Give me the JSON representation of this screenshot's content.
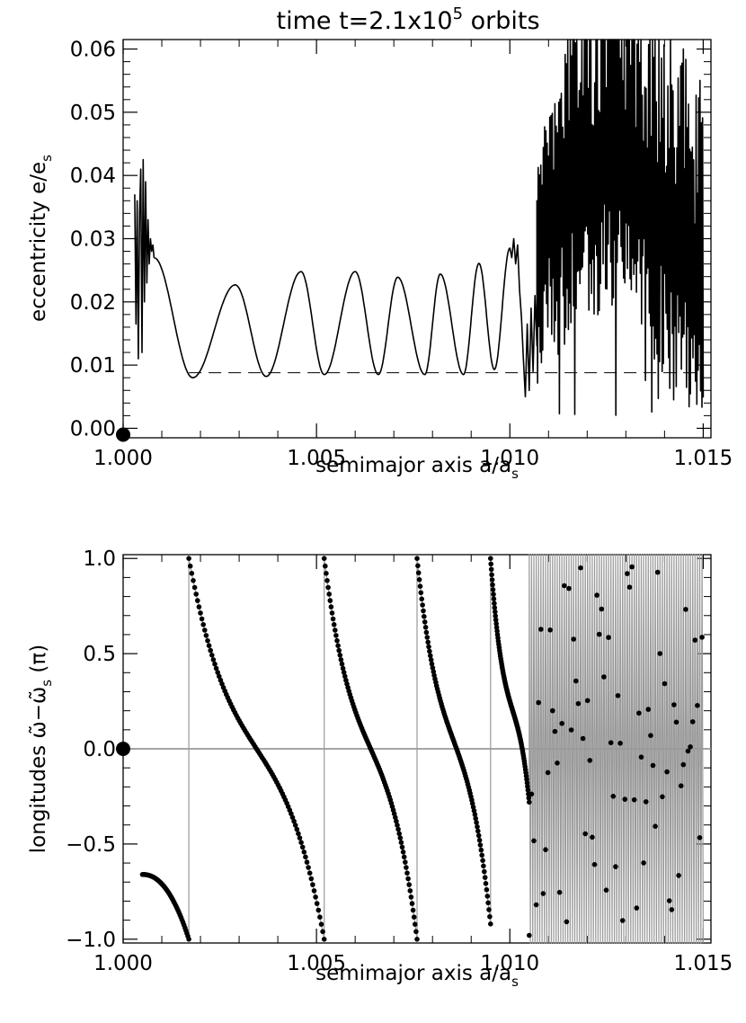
{
  "chart_data": [
    {
      "type": "line",
      "title": "time t=2.1x10",
      "title_exponent": "5",
      "title_suffix": " orbits",
      "xlabel": "semimajor axis a/a",
      "xlabel_sub": "s",
      "ylabel": "eccentricity e/e",
      "ylabel_sub": "s",
      "xlim": [
        1.0,
        1.0152
      ],
      "ylim": [
        -0.0015,
        0.0615
      ],
      "xticks": [
        "1.000",
        "1.005",
        "1.010",
        "1.015"
      ],
      "yticks": [
        "0.00",
        "0.01",
        "0.02",
        "0.03",
        "0.04",
        "0.05",
        "0.06"
      ],
      "grid": false,
      "reference_line": {
        "style": "dashed",
        "y": 0.0088,
        "x_start": 1.0017,
        "x_end": 1.015
      },
      "marker": {
        "x": 1.0,
        "y": -0.001
      },
      "segments": {
        "initial_spike": {
          "x_range": [
            1.0003,
            1.0008
          ],
          "y_min": 0.011,
          "y_max": 0.0425
        },
        "oscillation_minima_x": [
          1.0018,
          1.0037,
          1.0052,
          1.0066,
          1.0078,
          1.0088,
          1.0096
        ],
        "oscillation_peaks": [
          {
            "x": 1.0008,
            "y": 0.027
          },
          {
            "x": 1.0029,
            "y": 0.0227
          },
          {
            "x": 1.0046,
            "y": 0.0248
          },
          {
            "x": 1.006,
            "y": 0.0248
          },
          {
            "x": 1.0071,
            "y": 0.0239
          },
          {
            "x": 1.0082,
            "y": 0.0244
          },
          {
            "x": 1.0092,
            "y": 0.0261
          },
          {
            "x": 1.01,
            "y": 0.0285
          }
        ],
        "noisy_region": {
          "x_range": [
            1.0102,
            1.015
          ],
          "y_min": 0.0015,
          "y_max": 0.0615
        }
      }
    },
    {
      "type": "scatter",
      "xlabel": "semimajor axis a/a",
      "xlabel_sub": "s",
      "ylabel": "longitudes ",
      "ylabel_symbol": "ω̃−ω̃",
      "ylabel_sub": "s",
      "ylabel_unit": "(π)",
      "xlim": [
        1.0,
        1.0152
      ],
      "ylim": [
        -1.02,
        1.02
      ],
      "xticks": [
        "1.000",
        "1.005",
        "1.010",
        "1.015"
      ],
      "yticks": [
        "−1.0",
        "−0.5",
        "0.0",
        "0.5",
        "1.0"
      ],
      "grid": false,
      "reference_line": {
        "style": "solid",
        "y": 0.0
      },
      "marker": {
        "x": 1.0,
        "y": 0.0
      },
      "points_note": "dense dotted branches decreasing with a; connected by grey line",
      "branches": [
        {
          "x_start": 1.0005,
          "x_end": 1.0017,
          "y_start": -0.66,
          "y_end": -1.0
        },
        {
          "x_start": 1.0017,
          "x_end": 1.0052,
          "y_start": 1.0,
          "y_end": -1.0
        },
        {
          "x_start": 1.0052,
          "x_end": 1.0076,
          "y_start": 1.0,
          "y_end": -1.0
        },
        {
          "x_start": 1.0076,
          "x_end": 1.0095,
          "y_start": 1.0,
          "y_end": -0.92
        },
        {
          "x_start": 1.0095,
          "x_end": 1.0105,
          "y_start": 1.0,
          "y_end": -0.28
        }
      ],
      "noisy_region": {
        "x_range": [
          1.0105,
          1.015
        ]
      }
    }
  ]
}
